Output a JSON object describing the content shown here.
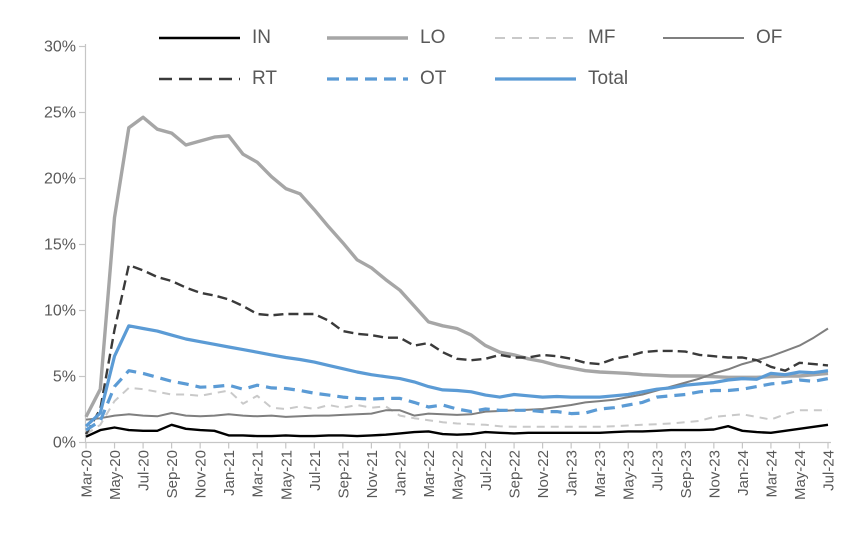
{
  "chart_data": {
    "type": "line",
    "grid": false,
    "legend_position": "top",
    "ylim": [
      0,
      30
    ],
    "ytick_step": 5,
    "y_tick_labels": [
      "0%",
      "5%",
      "10%",
      "15%",
      "20%",
      "25%",
      "30%"
    ],
    "x_tick_every": 2,
    "categories": [
      "Mar-20",
      "Apr-20",
      "May-20",
      "Jun-20",
      "Jul-20",
      "Aug-20",
      "Sep-20",
      "Oct-20",
      "Nov-20",
      "Dec-20",
      "Jan-21",
      "Feb-21",
      "Mar-21",
      "Apr-21",
      "May-21",
      "Jun-21",
      "Jul-21",
      "Aug-21",
      "Sep-21",
      "Oct-21",
      "Nov-21",
      "Dec-21",
      "Jan-22",
      "Feb-22",
      "Mar-22",
      "Apr-22",
      "May-22",
      "Jun-22",
      "Jul-22",
      "Aug-22",
      "Sep-22",
      "Oct-22",
      "Nov-22",
      "Dec-22",
      "Jan-23",
      "Feb-23",
      "Mar-23",
      "Apr-23",
      "May-23",
      "Jun-23",
      "Jul-23",
      "Aug-23",
      "Sep-23",
      "Oct-23",
      "Nov-23",
      "Dec-23",
      "Jan-24",
      "Feb-24",
      "Mar-24",
      "Apr-24",
      "May-24",
      "Jun-24",
      "Jul-24"
    ],
    "series": [
      {
        "name": "IN",
        "color": "#000000",
        "dash": "solid",
        "width": 2.4,
        "values": [
          0.4,
          0.9,
          1.1,
          0.9,
          0.85,
          0.85,
          1.3,
          1.0,
          0.9,
          0.85,
          0.5,
          0.5,
          0.45,
          0.45,
          0.5,
          0.45,
          0.45,
          0.5,
          0.5,
          0.45,
          0.5,
          0.55,
          0.65,
          0.75,
          0.8,
          0.6,
          0.55,
          0.6,
          0.75,
          0.7,
          0.65,
          0.7,
          0.7,
          0.7,
          0.7,
          0.7,
          0.7,
          0.75,
          0.8,
          0.8,
          0.85,
          0.9,
          0.9,
          0.9,
          0.95,
          1.2,
          0.85,
          0.75,
          0.7,
          0.85,
          1.0,
          1.15,
          1.3
        ]
      },
      {
        "name": "LO",
        "color": "#a6a6a6",
        "dash": "solid",
        "width": 3.4,
        "values": [
          1.9,
          4.0,
          17.0,
          23.8,
          24.6,
          23.7,
          23.4,
          22.5,
          22.8,
          23.1,
          23.2,
          21.8,
          21.2,
          20.1,
          19.2,
          18.8,
          17.6,
          16.3,
          15.1,
          13.8,
          13.2,
          12.3,
          11.5,
          10.3,
          9.1,
          8.8,
          8.6,
          8.1,
          7.3,
          6.8,
          6.6,
          6.3,
          6.1,
          5.8,
          5.6,
          5.4,
          5.3,
          5.25,
          5.2,
          5.1,
          5.05,
          5.0,
          5.0,
          5.0,
          4.95,
          4.9,
          4.9,
          4.9,
          4.95,
          5.0,
          5.0,
          5.1,
          5.2
        ]
      },
      {
        "name": "MF",
        "color": "#c9c9c9",
        "dash": "dashed",
        "width": 2.0,
        "values": [
          0.6,
          1.3,
          3.1,
          4.1,
          4.0,
          3.8,
          3.6,
          3.6,
          3.5,
          3.7,
          3.9,
          2.9,
          3.5,
          2.6,
          2.5,
          2.7,
          2.5,
          2.8,
          2.6,
          2.8,
          2.6,
          2.7,
          2.0,
          1.8,
          1.65,
          1.5,
          1.4,
          1.35,
          1.3,
          1.2,
          1.15,
          1.15,
          1.15,
          1.15,
          1.15,
          1.15,
          1.15,
          1.2,
          1.25,
          1.3,
          1.35,
          1.4,
          1.5,
          1.6,
          1.9,
          2.0,
          2.1,
          1.9,
          1.7,
          2.1,
          2.4,
          2.4,
          2.4
        ]
      },
      {
        "name": "OF",
        "color": "#7f7f7f",
        "dash": "solid",
        "width": 2.0,
        "values": [
          1.7,
          1.8,
          2.0,
          2.1,
          2.0,
          1.95,
          2.2,
          2.0,
          1.95,
          2.0,
          2.1,
          2.0,
          1.95,
          2.0,
          1.9,
          1.95,
          2.0,
          2.0,
          2.05,
          2.1,
          2.15,
          2.4,
          2.4,
          2.0,
          2.15,
          2.1,
          2.05,
          2.1,
          2.3,
          2.35,
          2.4,
          2.45,
          2.5,
          2.65,
          2.8,
          3.0,
          3.1,
          3.2,
          3.4,
          3.6,
          3.9,
          4.2,
          4.5,
          4.8,
          5.2,
          5.5,
          5.9,
          6.2,
          6.5,
          6.9,
          7.3,
          7.9,
          8.6
        ]
      },
      {
        "name": "RT",
        "color": "#3a3a3a",
        "dash": "dashed",
        "width": 2.4,
        "values": [
          0.6,
          2.5,
          8.5,
          13.4,
          13.0,
          12.5,
          12.2,
          11.7,
          11.3,
          11.1,
          10.8,
          10.3,
          9.7,
          9.6,
          9.7,
          9.7,
          9.7,
          9.2,
          8.4,
          8.2,
          8.1,
          7.9,
          7.9,
          7.3,
          7.5,
          6.8,
          6.3,
          6.2,
          6.3,
          6.6,
          6.4,
          6.4,
          6.6,
          6.5,
          6.3,
          6.0,
          5.9,
          6.3,
          6.5,
          6.8,
          6.9,
          6.9,
          6.85,
          6.6,
          6.5,
          6.4,
          6.4,
          6.2,
          5.7,
          5.4,
          6.0,
          5.9,
          5.8
        ]
      },
      {
        "name": "OT",
        "color": "#5b9bd5",
        "dash": "dashed",
        "width": 3.2,
        "values": [
          0.9,
          1.6,
          4.2,
          5.4,
          5.2,
          4.9,
          4.6,
          4.4,
          4.15,
          4.2,
          4.3,
          4.0,
          4.3,
          4.1,
          4.05,
          3.9,
          3.7,
          3.55,
          3.4,
          3.3,
          3.25,
          3.3,
          3.3,
          3.0,
          2.65,
          2.8,
          2.5,
          2.3,
          2.5,
          2.4,
          2.4,
          2.4,
          2.3,
          2.3,
          2.15,
          2.2,
          2.5,
          2.6,
          2.8,
          3.0,
          3.4,
          3.5,
          3.6,
          3.8,
          3.9,
          3.9,
          4.0,
          4.2,
          4.4,
          4.5,
          4.7,
          4.6,
          4.8
        ]
      },
      {
        "name": "Total",
        "color": "#5b9bd5",
        "dash": "solid",
        "width": 3.2,
        "values": [
          1.2,
          2.2,
          6.5,
          8.8,
          8.6,
          8.4,
          8.1,
          7.8,
          7.6,
          7.4,
          7.2,
          7.0,
          6.8,
          6.6,
          6.4,
          6.25,
          6.05,
          5.8,
          5.55,
          5.3,
          5.1,
          4.95,
          4.8,
          4.55,
          4.2,
          3.95,
          3.9,
          3.8,
          3.55,
          3.4,
          3.6,
          3.5,
          3.4,
          3.45,
          3.4,
          3.4,
          3.4,
          3.5,
          3.6,
          3.8,
          4.0,
          4.1,
          4.3,
          4.4,
          4.5,
          4.7,
          4.8,
          4.75,
          5.2,
          5.1,
          5.3,
          5.25,
          5.4
        ]
      }
    ]
  }
}
